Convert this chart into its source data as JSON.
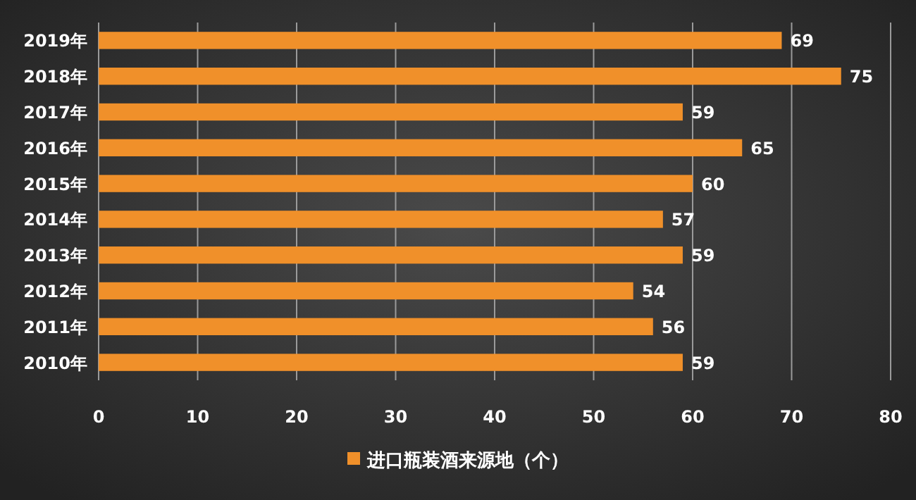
{
  "chart_data": {
    "type": "bar",
    "orientation": "horizontal",
    "categories": [
      "2019年",
      "2018年",
      "2017年",
      "2016年",
      "2015年",
      "2014年",
      "2013年",
      "2012年",
      "2011年",
      "2010年"
    ],
    "series": [
      {
        "name": "进口瓶装酒来源地（个）",
        "color": "#f0902a",
        "values": [
          69,
          75,
          59,
          65,
          60,
          57,
          59,
          54,
          56,
          59
        ]
      }
    ],
    "xlim": [
      0,
      80
    ],
    "xticks": [
      0,
      10,
      20,
      30,
      40,
      50,
      60,
      70,
      80
    ],
    "grid": "x",
    "legend": "bottom",
    "data_labels": true
  }
}
